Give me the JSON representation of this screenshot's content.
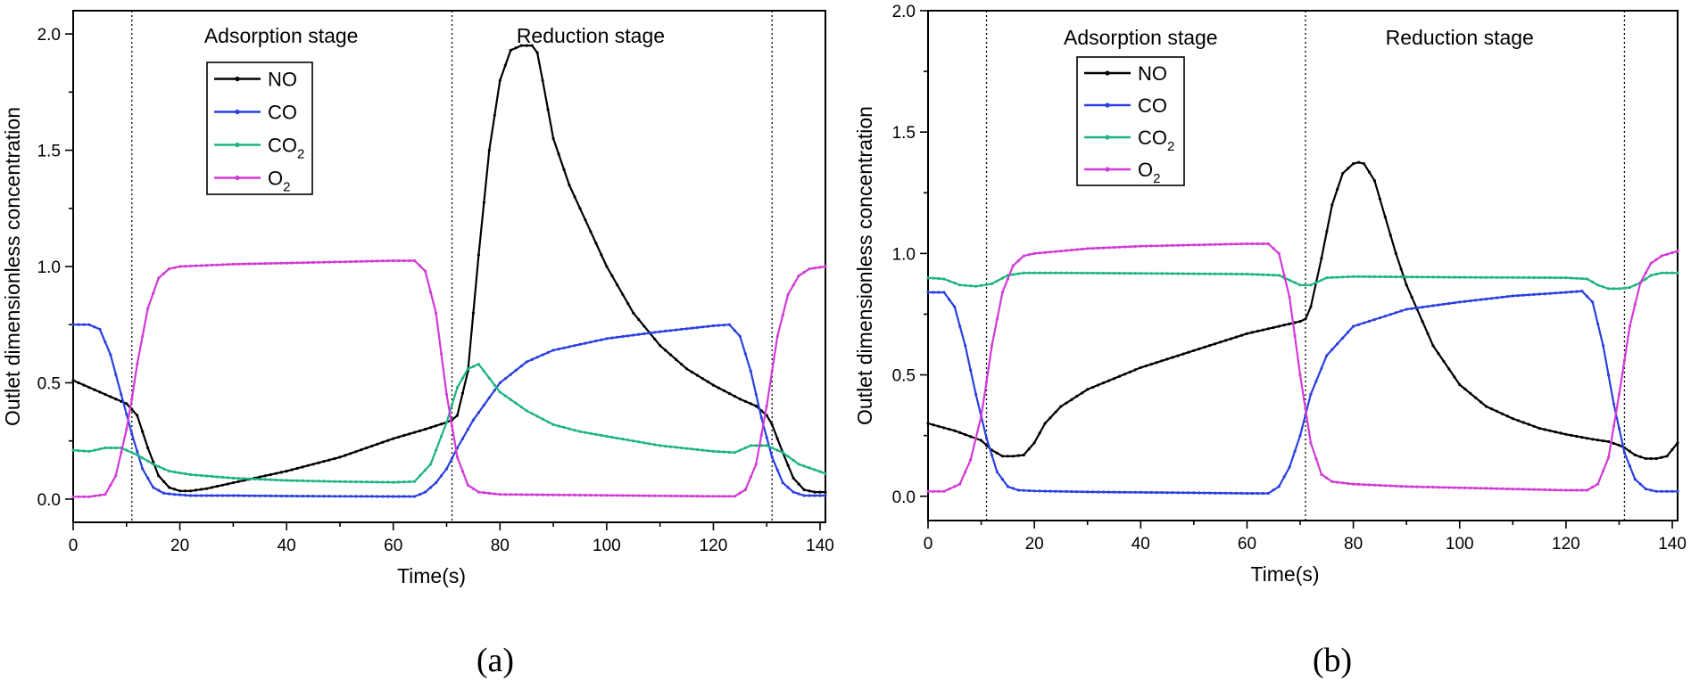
{
  "chart_data": [
    {
      "type": "line",
      "panel_label": "(a)",
      "xlabel": "Time(s)",
      "ylabel": "Outlet dimensionless concentration",
      "xlim": [
        0,
        141
      ],
      "ylim": [
        -0.1,
        2.1
      ],
      "xticks": [
        0,
        20,
        40,
        60,
        80,
        100,
        120,
        140
      ],
      "yticks": [
        "0.0",
        "0.5",
        "1.0",
        "1.5",
        "2.0"
      ],
      "stage_boundaries": [
        11,
        71,
        131
      ],
      "stages": [
        {
          "label": "Adsorption stage",
          "x_center": 39
        },
        {
          "label": "Reduction stage",
          "x_center": 97
        }
      ],
      "legend_position": "top-left",
      "series": [
        {
          "name": "NO",
          "legend_label": "NO",
          "color": "#000000",
          "x": [
            0,
            5,
            10,
            12,
            14,
            16,
            18,
            20,
            22,
            25,
            30,
            40,
            50,
            60,
            66,
            70,
            71,
            72,
            74,
            76,
            78,
            80,
            82,
            84,
            86,
            87,
            88,
            90,
            93,
            95,
            100,
            105,
            110,
            115,
            120,
            125,
            128,
            130,
            131,
            133,
            135,
            137,
            139,
            141
          ],
          "y": [
            0.51,
            0.46,
            0.41,
            0.36,
            0.22,
            0.1,
            0.05,
            0.035,
            0.035,
            0.045,
            0.07,
            0.12,
            0.18,
            0.26,
            0.3,
            0.33,
            0.34,
            0.36,
            0.55,
            1.05,
            1.5,
            1.8,
            1.93,
            1.95,
            1.95,
            1.92,
            1.8,
            1.55,
            1.35,
            1.25,
            1.0,
            0.8,
            0.66,
            0.56,
            0.49,
            0.43,
            0.4,
            0.36,
            0.32,
            0.2,
            0.09,
            0.04,
            0.03,
            0.03
          ]
        },
        {
          "name": "CO",
          "legend_label": "CO",
          "color": "#2a3fe0",
          "x": [
            0,
            3,
            5,
            7,
            9,
            11,
            13,
            15,
            17,
            19,
            22,
            30,
            40,
            50,
            60,
            64,
            66,
            68,
            70,
            72,
            75,
            80,
            85,
            90,
            100,
            110,
            120,
            123,
            125,
            127,
            129,
            131,
            133,
            135,
            137,
            141
          ],
          "y": [
            0.75,
            0.75,
            0.73,
            0.62,
            0.45,
            0.28,
            0.13,
            0.05,
            0.025,
            0.02,
            0.015,
            0.015,
            0.013,
            0.012,
            0.011,
            0.011,
            0.03,
            0.07,
            0.13,
            0.22,
            0.34,
            0.5,
            0.59,
            0.64,
            0.69,
            0.72,
            0.745,
            0.75,
            0.7,
            0.55,
            0.35,
            0.18,
            0.07,
            0.03,
            0.015,
            0.015
          ]
        },
        {
          "name": "CO2",
          "legend_label": "CO",
          "legend_sub": "2",
          "color": "#1db57e",
          "x": [
            0,
            3,
            6,
            9,
            12,
            15,
            18,
            22,
            30,
            40,
            50,
            60,
            64,
            67,
            70,
            72,
            74,
            76,
            78,
            80,
            85,
            90,
            95,
            100,
            110,
            120,
            124,
            127,
            130,
            133,
            136,
            141
          ],
          "y": [
            0.21,
            0.205,
            0.22,
            0.22,
            0.19,
            0.15,
            0.12,
            0.105,
            0.09,
            0.08,
            0.075,
            0.072,
            0.075,
            0.15,
            0.33,
            0.48,
            0.56,
            0.58,
            0.52,
            0.46,
            0.38,
            0.32,
            0.29,
            0.27,
            0.23,
            0.205,
            0.2,
            0.23,
            0.23,
            0.2,
            0.15,
            0.11
          ]
        },
        {
          "name": "O2",
          "legend_label": "O",
          "legend_sub": "2",
          "color": "#d23ad6",
          "x": [
            0,
            3,
            6,
            8,
            10,
            11,
            12,
            14,
            16,
            18,
            20,
            25,
            30,
            40,
            50,
            60,
            64,
            66,
            68,
            70,
            72,
            74,
            76,
            80,
            90,
            100,
            110,
            120,
            124,
            126,
            128,
            130,
            132,
            134,
            136,
            138,
            141
          ],
          "y": [
            0.01,
            0.01,
            0.02,
            0.1,
            0.3,
            0.43,
            0.58,
            0.82,
            0.95,
            0.99,
            1.0,
            1.005,
            1.01,
            1.015,
            1.02,
            1.025,
            1.025,
            0.98,
            0.8,
            0.45,
            0.18,
            0.06,
            0.03,
            0.02,
            0.018,
            0.016,
            0.014,
            0.012,
            0.012,
            0.04,
            0.15,
            0.4,
            0.7,
            0.88,
            0.96,
            0.99,
            1.0
          ]
        }
      ]
    },
    {
      "type": "line",
      "panel_label": "(b)",
      "xlabel": "Time(s)",
      "ylabel": "Outlet dimensionless concentration",
      "xlim": [
        0,
        141
      ],
      "ylim": [
        -0.1,
        2.0
      ],
      "xticks": [
        0,
        20,
        40,
        60,
        80,
        100,
        120,
        140
      ],
      "yticks": [
        "0.0",
        "0.5",
        "1.0",
        "1.5",
        "2.0"
      ],
      "stage_boundaries": [
        11,
        71,
        131
      ],
      "stages": [
        {
          "label": "Adsorption stage",
          "x_center": 40
        },
        {
          "label": "Reduction stage",
          "x_center": 100
        }
      ],
      "legend_position": "top-left",
      "series": [
        {
          "name": "NO",
          "legend_label": "NO",
          "color": "#000000",
          "x": [
            0,
            5,
            10,
            12,
            14,
            16,
            18,
            20,
            22,
            25,
            30,
            40,
            50,
            60,
            66,
            70,
            71,
            72,
            74,
            76,
            78,
            80,
            81,
            82,
            84,
            86,
            88,
            90,
            95,
            100,
            105,
            110,
            115,
            120,
            125,
            128,
            130,
            131,
            133,
            135,
            137,
            139,
            141
          ],
          "y": [
            0.3,
            0.27,
            0.23,
            0.19,
            0.165,
            0.165,
            0.17,
            0.22,
            0.3,
            0.37,
            0.44,
            0.53,
            0.6,
            0.67,
            0.7,
            0.72,
            0.73,
            0.78,
            0.98,
            1.2,
            1.33,
            1.37,
            1.375,
            1.37,
            1.3,
            1.15,
            1.0,
            0.87,
            0.62,
            0.46,
            0.37,
            0.32,
            0.28,
            0.255,
            0.235,
            0.225,
            0.21,
            0.2,
            0.17,
            0.155,
            0.155,
            0.165,
            0.22
          ]
        },
        {
          "name": "CO",
          "legend_label": "CO",
          "color": "#2a3fe0",
          "x": [
            0,
            3,
            5,
            7,
            9,
            11,
            13,
            15,
            17,
            20,
            30,
            40,
            50,
            60,
            64,
            66,
            68,
            70,
            72,
            75,
            80,
            90,
            100,
            110,
            120,
            123,
            125,
            127,
            129,
            131,
            133,
            135,
            137,
            141
          ],
          "y": [
            0.84,
            0.84,
            0.78,
            0.62,
            0.42,
            0.24,
            0.1,
            0.04,
            0.025,
            0.022,
            0.018,
            0.016,
            0.014,
            0.012,
            0.012,
            0.04,
            0.12,
            0.25,
            0.42,
            0.58,
            0.7,
            0.77,
            0.8,
            0.825,
            0.84,
            0.845,
            0.8,
            0.62,
            0.38,
            0.18,
            0.07,
            0.03,
            0.02,
            0.02
          ]
        },
        {
          "name": "CO2",
          "legend_label": "CO",
          "legend_sub": "2",
          "color": "#1db57e",
          "x": [
            0,
            3,
            6,
            9,
            12,
            15,
            18,
            25,
            40,
            60,
            66,
            68,
            70,
            72,
            75,
            80,
            100,
            120,
            124,
            126,
            128,
            130,
            132,
            134,
            136,
            138,
            141
          ],
          "y": [
            0.9,
            0.895,
            0.87,
            0.865,
            0.875,
            0.91,
            0.92,
            0.92,
            0.918,
            0.915,
            0.91,
            0.89,
            0.87,
            0.87,
            0.9,
            0.905,
            0.902,
            0.9,
            0.895,
            0.87,
            0.855,
            0.855,
            0.86,
            0.88,
            0.91,
            0.92,
            0.92
          ]
        },
        {
          "name": "O2",
          "legend_label": "O",
          "legend_sub": "2",
          "color": "#d23ad6",
          "x": [
            0,
            3,
            6,
            8,
            10,
            11,
            12,
            14,
            16,
            18,
            20,
            25,
            30,
            40,
            50,
            60,
            64,
            66,
            68,
            70,
            72,
            74,
            76,
            80,
            90,
            100,
            110,
            120,
            124,
            126,
            128,
            130,
            132,
            134,
            136,
            138,
            141
          ],
          "y": [
            0.02,
            0.02,
            0.05,
            0.15,
            0.33,
            0.47,
            0.62,
            0.84,
            0.95,
            0.99,
            1.0,
            1.01,
            1.02,
            1.03,
            1.035,
            1.04,
            1.04,
            1.0,
            0.82,
            0.5,
            0.22,
            0.09,
            0.06,
            0.05,
            0.04,
            0.035,
            0.03,
            0.025,
            0.025,
            0.05,
            0.16,
            0.42,
            0.7,
            0.88,
            0.96,
            0.99,
            1.01
          ]
        }
      ]
    }
  ]
}
